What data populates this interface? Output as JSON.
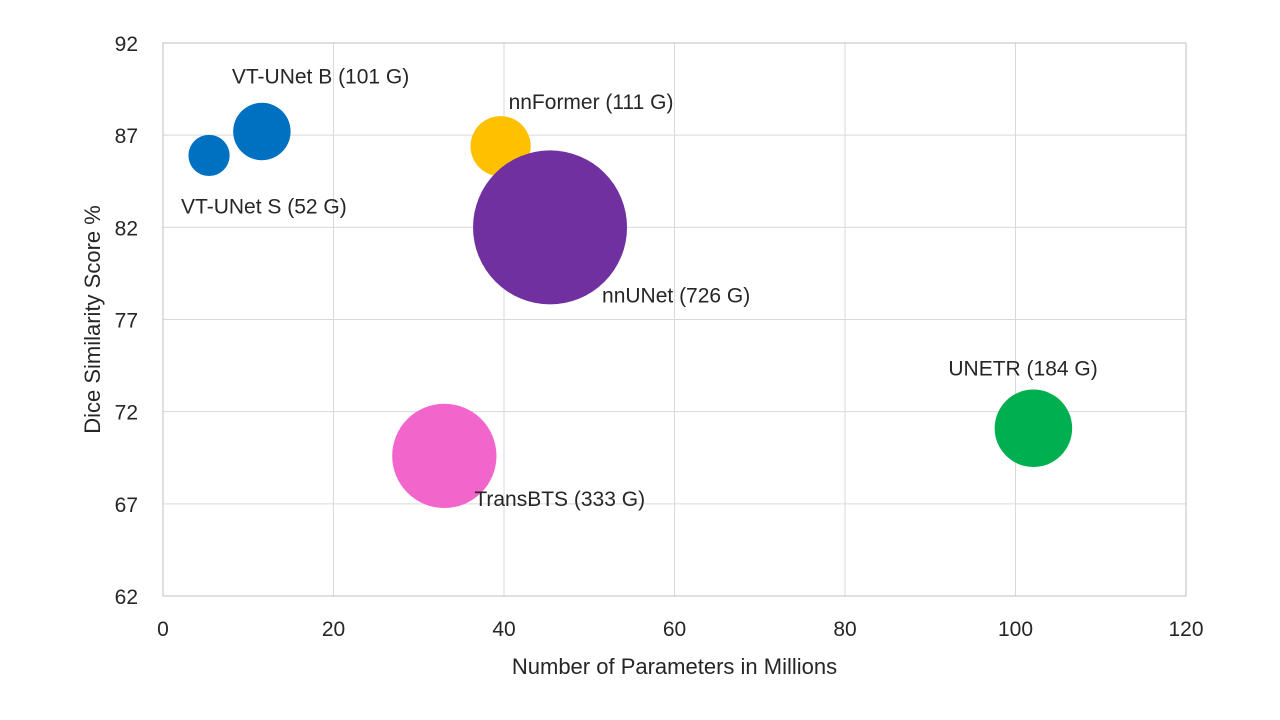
{
  "chart_data": {
    "type": "scatter",
    "subtype": "bubble",
    "title": "",
    "xlabel": "Number of Parameters in Millions",
    "ylabel": "Dice Similarity Score %",
    "xlim": [
      0,
      120
    ],
    "ylim": [
      62,
      92
    ],
    "xticks": [
      0,
      20,
      40,
      60,
      80,
      100,
      120
    ],
    "yticks": [
      62,
      67,
      72,
      77,
      82,
      87,
      92
    ],
    "grid": true,
    "legend": "none",
    "points": [
      {
        "label": "VT-UNet S (52 G)",
        "x": 5.4,
        "y": 85.9,
        "flops": 52,
        "color": "#0070c0"
      },
      {
        "label": "VT-UNet B (101 G)",
        "x": 11.6,
        "y": 87.2,
        "flops": 101,
        "color": "#0070c0"
      },
      {
        "label": "nnFormer (111 G)",
        "x": 39.6,
        "y": 86.4,
        "flops": 111,
        "color": "#ffc000"
      },
      {
        "label": "nnUNet (726 G)",
        "x": 45.4,
        "y": 82.0,
        "flops": 726,
        "color": "#7030a0"
      },
      {
        "label": "TransBTS (333 G)",
        "x": 33.0,
        "y": 69.6,
        "flops": 333,
        "color": "#f266cc"
      },
      {
        "label": "UNETR (184 G)",
        "x": 102.1,
        "y": 71.1,
        "flops": 184,
        "color": "#00b050"
      }
    ]
  }
}
